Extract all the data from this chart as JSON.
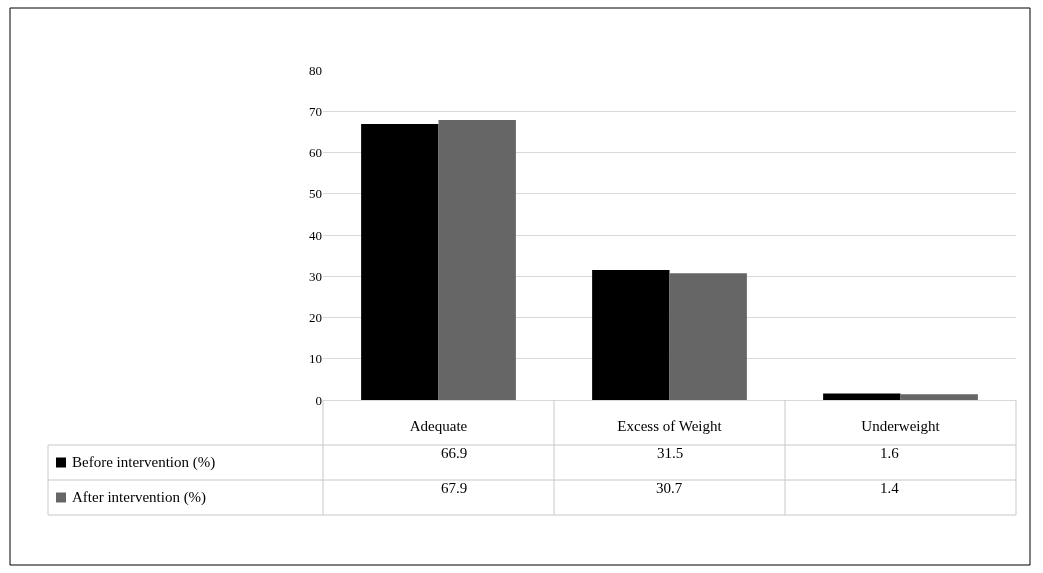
{
  "chart_data": {
    "type": "bar",
    "categories": [
      "Adequate",
      "Excess of Weight",
      "Underweight"
    ],
    "series": [
      {
        "name": "Before intervention (%)",
        "color": "#000000",
        "values": [
          66.9,
          31.5,
          1.6
        ]
      },
      {
        "name": "After intervention (%)",
        "color": "#666666",
        "values": [
          67.9,
          30.7,
          1.4
        ]
      }
    ],
    "ylim": [
      0,
      80
    ],
    "yticks": [
      0,
      10,
      20,
      30,
      40,
      50,
      60,
      70,
      80
    ],
    "grid": "y",
    "legend": "bottom",
    "data_labels": true
  }
}
